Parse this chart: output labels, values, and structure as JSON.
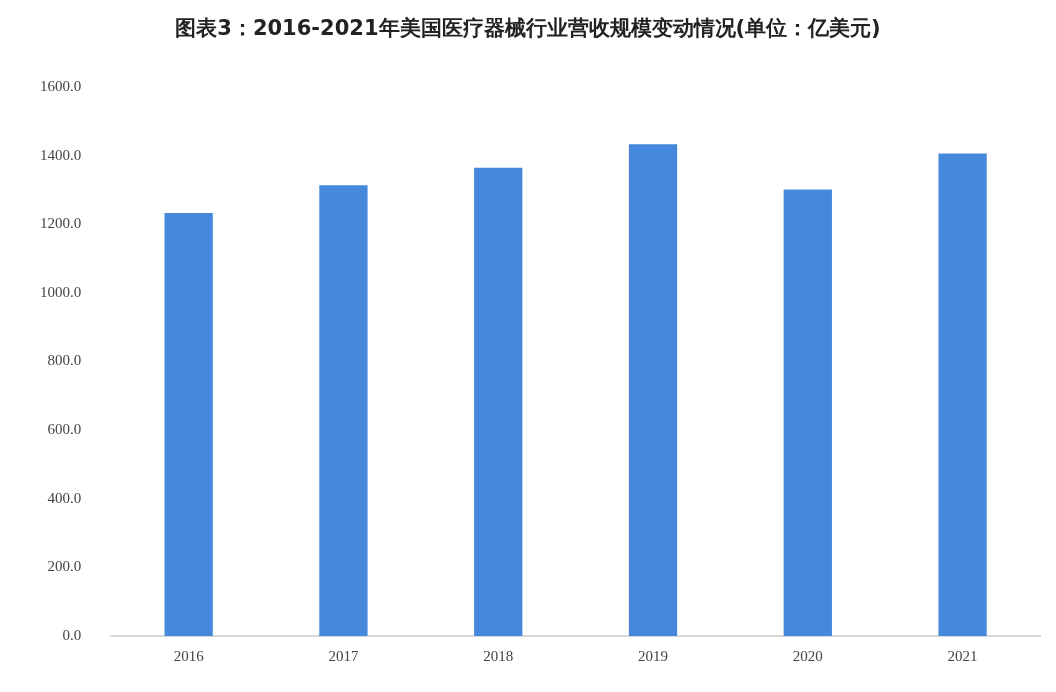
{
  "chart_data": {
    "type": "bar",
    "title": "图表3：2016-2021年美国医疗器械行业营收规模变动情况(单位：亿美元)",
    "categories": [
      "2016",
      "2017",
      "2018",
      "2019",
      "2020",
      "2021"
    ],
    "values": [
      1233,
      1314,
      1365,
      1433,
      1301,
      1406
    ],
    "color": "#4689dc",
    "ylim": [
      0,
      1600
    ],
    "yticks": [
      {
        "value": 0,
        "label": "0.0"
      },
      {
        "value": 200,
        "label": "200.0"
      },
      {
        "value": 400,
        "label": "400.0"
      },
      {
        "value": 600,
        "label": "600.0"
      },
      {
        "value": 800,
        "label": "800.0"
      },
      {
        "value": 1000,
        "label": "1000.0"
      },
      {
        "value": 1200,
        "label": "1200.0"
      },
      {
        "value": 1400,
        "label": "1400.0"
      },
      {
        "value": 1600,
        "label": "1600.0"
      }
    ],
    "grid": false,
    "legend": false
  }
}
